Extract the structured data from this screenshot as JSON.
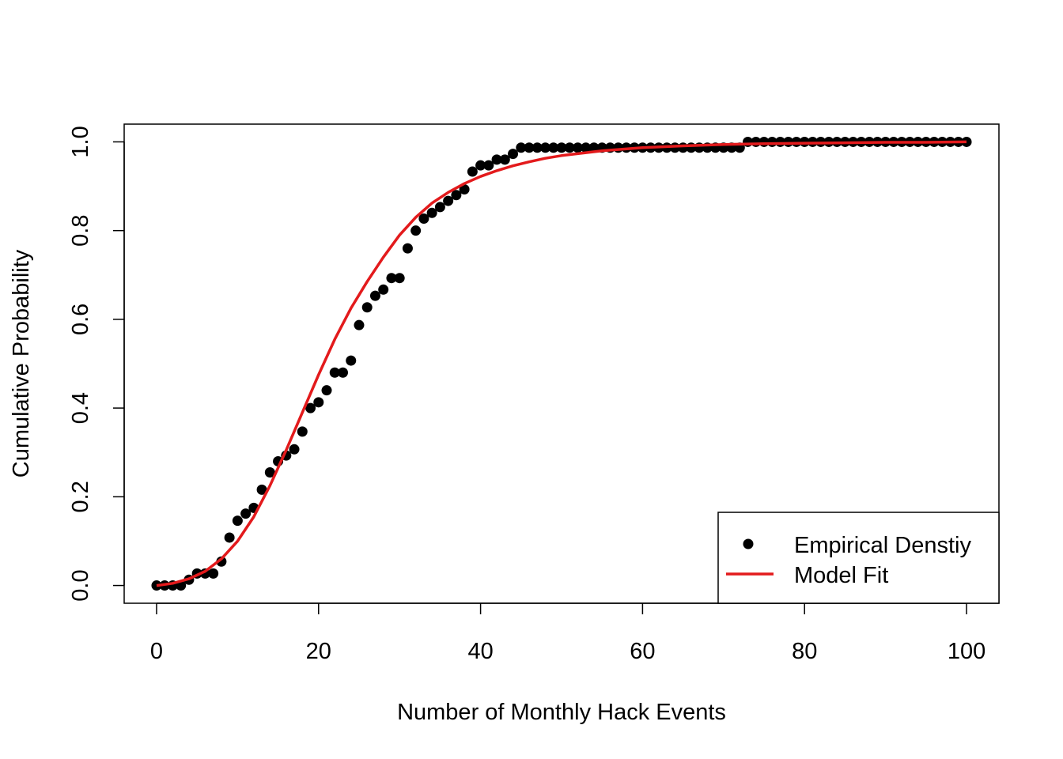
{
  "chart_data": {
    "type": "scatter",
    "title": "",
    "xlabel": "Number of Monthly Hack Events",
    "ylabel": "Cumulative Probability",
    "xlim": [
      -4,
      104
    ],
    "ylim": [
      -0.04,
      1.04
    ],
    "x_ticks": [
      0,
      20,
      40,
      60,
      80,
      100
    ],
    "x_tick_labels": [
      "0",
      "20",
      "40",
      "60",
      "80",
      "100"
    ],
    "y_ticks": [
      0.0,
      0.2,
      0.4,
      0.6,
      0.8,
      1.0
    ],
    "y_tick_labels": [
      "0.0",
      "0.2",
      "0.4",
      "0.6",
      "0.8",
      "1.0"
    ],
    "grid": false,
    "legend_position": "bottom-right",
    "series": [
      {
        "name": "Empirical Denstiy",
        "kind": "points",
        "color": "#000000",
        "x": [
          0,
          1,
          2,
          3,
          4,
          5,
          6,
          7,
          8,
          9,
          10,
          11,
          12,
          13,
          14,
          15,
          16,
          17,
          18,
          19,
          20,
          21,
          22,
          23,
          24,
          25,
          26,
          27,
          28,
          29,
          30,
          31,
          32,
          33,
          34,
          35,
          36,
          37,
          38,
          39,
          40,
          41,
          42,
          43,
          44,
          45,
          46,
          47,
          48,
          49,
          50,
          51,
          52,
          53,
          54,
          55,
          56,
          57,
          58,
          59,
          60,
          61,
          62,
          63,
          64,
          65,
          66,
          67,
          68,
          69,
          70,
          71,
          72,
          73,
          74,
          75,
          76,
          77,
          78,
          79,
          80,
          81,
          82,
          83,
          84,
          85,
          86,
          87,
          88,
          89,
          90,
          91,
          92,
          93,
          94,
          95,
          96,
          97,
          98,
          99,
          100
        ],
        "y": [
          0.0,
          0.0,
          0.0,
          0.0,
          0.013,
          0.027,
          0.027,
          0.027,
          0.054,
          0.108,
          0.146,
          0.162,
          0.175,
          0.216,
          0.255,
          0.28,
          0.293,
          0.307,
          0.347,
          0.4,
          0.413,
          0.44,
          0.48,
          0.48,
          0.507,
          0.587,
          0.627,
          0.653,
          0.667,
          0.693,
          0.693,
          0.76,
          0.8,
          0.827,
          0.84,
          0.853,
          0.867,
          0.88,
          0.893,
          0.933,
          0.947,
          0.947,
          0.96,
          0.96,
          0.973,
          0.987,
          0.987,
          0.987,
          0.987,
          0.987,
          0.987,
          0.987,
          0.987,
          0.987,
          0.987,
          0.987,
          0.987,
          0.987,
          0.987,
          0.987,
          0.987,
          0.987,
          0.987,
          0.987,
          0.987,
          0.987,
          0.987,
          0.987,
          0.987,
          0.987,
          0.987,
          0.987,
          0.987,
          1.0,
          1.0,
          1.0,
          1.0,
          1.0,
          1.0,
          1.0,
          1.0,
          1.0,
          1.0,
          1.0,
          1.0,
          1.0,
          1.0,
          1.0,
          1.0,
          1.0,
          1.0,
          1.0,
          1.0,
          1.0,
          1.0,
          1.0,
          1.0,
          1.0,
          1.0,
          1.0,
          1.0
        ]
      },
      {
        "name": "Model Fit",
        "kind": "line",
        "color": "#e31a1c",
        "x": [
          0,
          2,
          4,
          6,
          8,
          10,
          12,
          14,
          16,
          18,
          20,
          22,
          24,
          26,
          28,
          30,
          32,
          34,
          36,
          38,
          40,
          42,
          44,
          46,
          48,
          50,
          55,
          60,
          65,
          70,
          75,
          80,
          85,
          90,
          95,
          100
        ],
        "y": [
          0.0,
          0.005,
          0.015,
          0.032,
          0.06,
          0.1,
          0.155,
          0.225,
          0.305,
          0.39,
          0.475,
          0.555,
          0.625,
          0.685,
          0.74,
          0.79,
          0.83,
          0.862,
          0.886,
          0.906,
          0.922,
          0.935,
          0.946,
          0.955,
          0.963,
          0.969,
          0.98,
          0.987,
          0.991,
          0.994,
          0.996,
          0.997,
          0.998,
          0.999,
          0.999,
          1.0
        ]
      }
    ]
  }
}
